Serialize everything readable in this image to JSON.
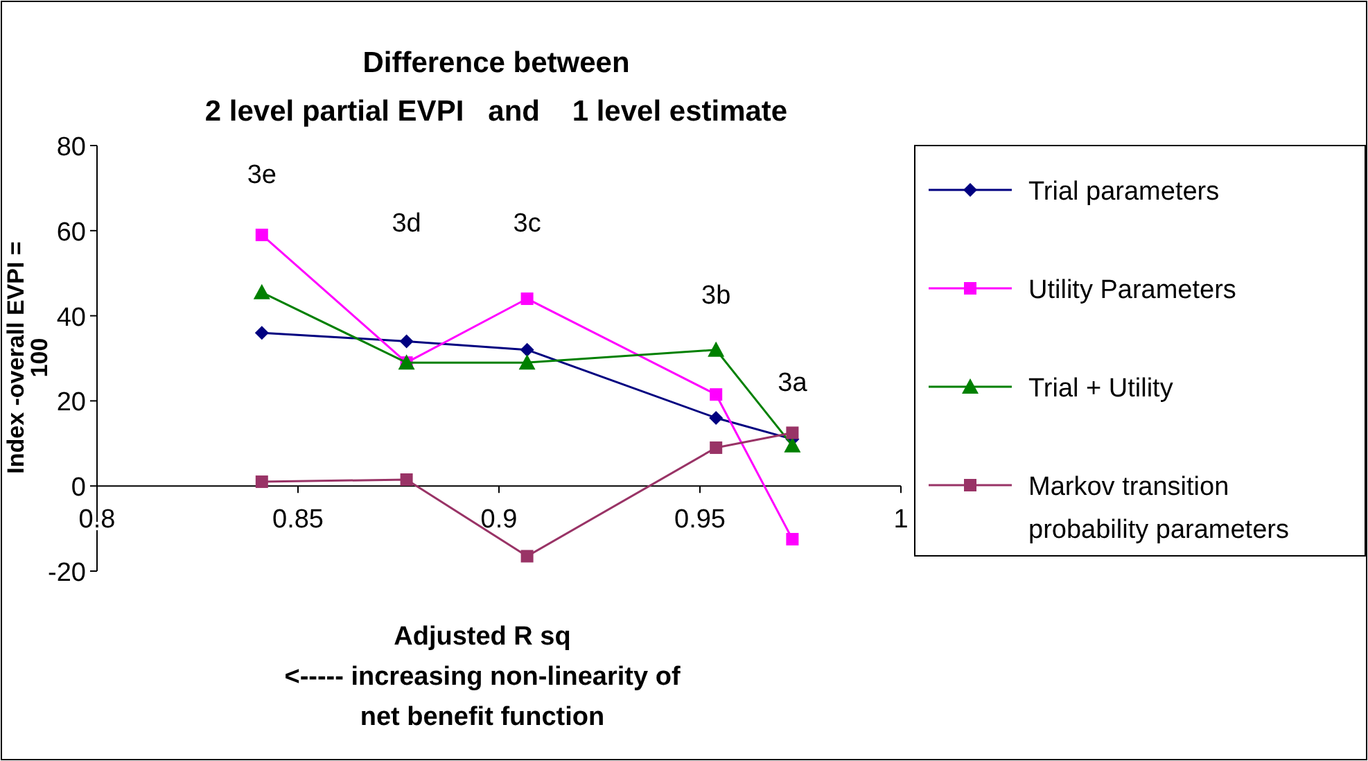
{
  "chart_data": {
    "type": "line",
    "title": "Difference between\n2 level partial EVPI   and    1 level estimate",
    "xlabel": "Adjusted R sq\n<----- increasing non-linearity of\nnet benefit function",
    "ylabel": "Index -overall EVPI =\n100",
    "x": [
      0.841,
      0.877,
      0.907,
      0.954,
      0.973
    ],
    "xlim": [
      0.8,
      1
    ],
    "xticks": [
      0.8,
      0.85,
      0.9,
      0.95,
      1
    ],
    "ylim": [
      -20,
      80
    ],
    "yticks": [
      -20,
      0,
      20,
      40,
      60,
      80
    ],
    "grid": false,
    "legend": "right",
    "line_style": "solid",
    "series": [
      {
        "name": "Trial parameters",
        "color": "#000080",
        "marker": "diamond",
        "values": [
          36,
          34,
          32,
          16,
          11
        ]
      },
      {
        "name": "Utility Parameters",
        "color": "#ff00ff",
        "marker": "square",
        "values": [
          59,
          29,
          44,
          21.5,
          -12.5
        ]
      },
      {
        "name": "Trial + Utility",
        "color": "#008000",
        "marker": "triangle",
        "values": [
          45.5,
          29,
          29,
          32,
          9.5
        ]
      },
      {
        "name": "Markov transition\nprobability parameters",
        "color": "#993366",
        "marker": "square",
        "values": [
          1,
          1.5,
          -16.5,
          9,
          12.5
        ]
      }
    ],
    "annotations": [
      "3e",
      "3d",
      "3c",
      "3b",
      "3a"
    ]
  }
}
